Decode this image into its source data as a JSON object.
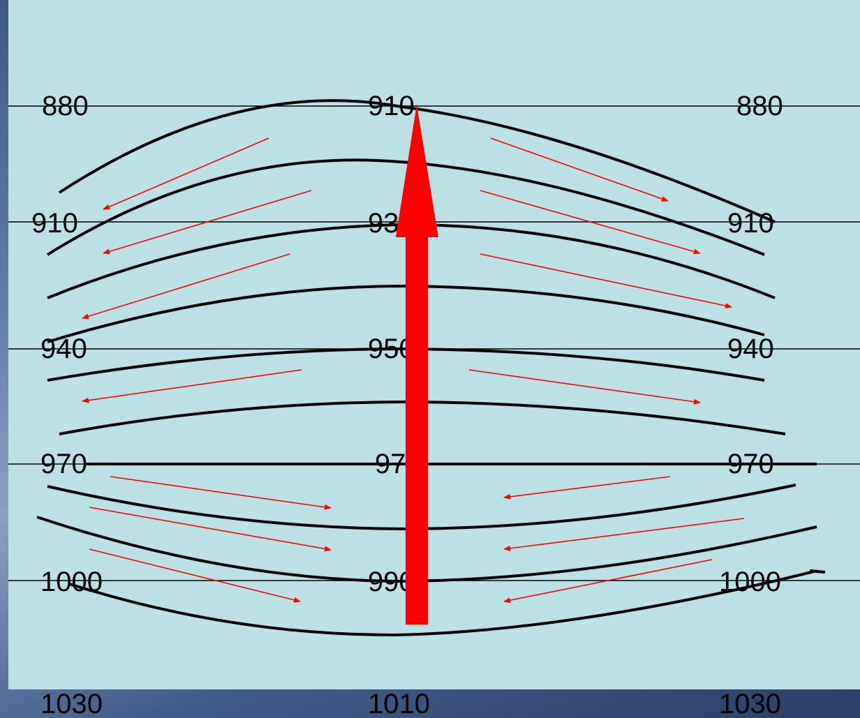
{
  "colors": {
    "panel": "#bce1e4",
    "isobar": "#000000",
    "flow_arrow": "#ff0000",
    "main_arrow": "#ff0000",
    "backdrop": "#4a6a96"
  },
  "rows": [
    {
      "left": "880",
      "center": "910",
      "right": "880"
    },
    {
      "left": "910",
      "center": "930",
      "right": "910"
    },
    {
      "left": "940",
      "center": "950",
      "right": "940"
    },
    {
      "left": "970",
      "center": "970",
      "right": "970"
    },
    {
      "left": "1000",
      "center": "990",
      "right": "1000"
    },
    {
      "left": "1030",
      "center": "1010",
      "right": "1030"
    }
  ]
}
